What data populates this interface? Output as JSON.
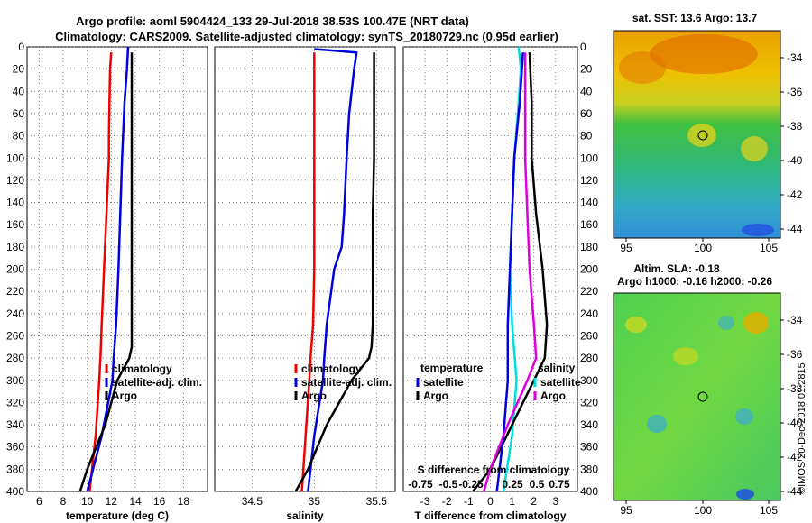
{
  "titles": {
    "line1": "Argo profile: aoml 5904424_133 29-Jul-2018 38.53S 100.47E (NRT data)",
    "line2": "Climatology: CARS2009. Satellite-adjusted climatology: synTS_20180729.nc (0.95d earlier)"
  },
  "colors": {
    "climatology": "#ee0000",
    "satellite": "#0000dd",
    "argo": "#000000",
    "sat_diff": "#00dddd",
    "sal_diff": "#dd00dd"
  },
  "chart_data": [
    {
      "type": "line",
      "panel": "temperature",
      "xlabel": "temperature (deg C)",
      "ylabel": "pressure",
      "xlim": [
        5,
        20
      ],
      "ylim": [
        400,
        0
      ],
      "xticks": [
        6,
        8,
        10,
        12,
        14,
        16,
        18
      ],
      "yticks": [
        0,
        20,
        40,
        60,
        80,
        100,
        120,
        140,
        160,
        180,
        200,
        220,
        240,
        260,
        280,
        300,
        320,
        340,
        360,
        380,
        400
      ],
      "legend": [
        "climatology",
        "satellite-adj. clim.",
        "Argo"
      ],
      "series": [
        {
          "name": "climatology",
          "color": "#ee0000",
          "depth": [
            5,
            20,
            50,
            80,
            100,
            150,
            200,
            250,
            280,
            300,
            350,
            400
          ],
          "values": [
            12.0,
            11.9,
            11.85,
            11.8,
            11.8,
            11.6,
            11.4,
            11.2,
            11.1,
            11.0,
            10.7,
            10.2
          ]
        },
        {
          "name": "satellite-adj. clim.",
          "color": "#0000dd",
          "depth": [
            0,
            20,
            50,
            100,
            150,
            200,
            250,
            280,
            300,
            350,
            400
          ],
          "values": [
            13.4,
            13.3,
            13.1,
            12.9,
            12.75,
            12.6,
            12.4,
            12.2,
            12.1,
            11.2,
            10.0
          ]
        },
        {
          "name": "Argo",
          "color": "#000000",
          "depth": [
            5,
            50,
            100,
            150,
            200,
            250,
            270,
            280,
            300,
            340,
            380,
            400
          ],
          "values": [
            13.7,
            13.7,
            13.7,
            13.7,
            13.7,
            13.7,
            13.7,
            13.5,
            12.5,
            11.5,
            10.0,
            9.4
          ]
        }
      ]
    },
    {
      "type": "line",
      "panel": "salinity",
      "xlabel": "salinity",
      "ylabel": "pressure",
      "xlim": [
        34.2,
        35.65
      ],
      "ylim": [
        400,
        0
      ],
      "xticks": [
        34.5,
        35,
        35.5
      ],
      "legend": [
        "climatology",
        "satellite-adj. clim.",
        "Argo"
      ],
      "series": [
        {
          "name": "climatology",
          "color": "#ee0000",
          "depth": [
            5,
            50,
            100,
            150,
            200,
            250,
            280,
            300,
            350,
            400
          ],
          "values": [
            35.0,
            35.0,
            35.0,
            35.0,
            35.0,
            34.99,
            34.97,
            34.96,
            34.93,
            34.9
          ],
          "dash": false
        },
        {
          "name": "satellite-adj. clim.",
          "color": "#0000dd",
          "depth": [
            2,
            5,
            20,
            60,
            100,
            150,
            180,
            200,
            250,
            280,
            300,
            350,
            400
          ],
          "values": [
            35.0,
            35.34,
            35.32,
            35.28,
            35.26,
            35.24,
            35.22,
            35.16,
            35.1,
            35.08,
            35.07,
            35.0,
            34.95
          ]
        },
        {
          "name": "Argo",
          "color": "#000000",
          "depth": [
            5,
            50,
            100,
            150,
            200,
            250,
            270,
            280,
            300,
            340,
            380,
            400
          ],
          "values": [
            35.48,
            35.48,
            35.48,
            35.47,
            35.47,
            35.47,
            35.46,
            35.44,
            35.3,
            35.1,
            34.95,
            34.85
          ]
        }
      ]
    },
    {
      "type": "line",
      "panel": "differences",
      "xlabel": "T difference from climatology",
      "xlabel_top": "S difference from climatology",
      "xlim": [
        -4,
        4
      ],
      "ylim": [
        400,
        0
      ],
      "xticks": [
        -3,
        -2,
        -1,
        0,
        1,
        2,
        3
      ],
      "sticks_labels": [
        "-0.75",
        "-0.5",
        "-0.25",
        "0.25",
        "0.5",
        "0.75"
      ],
      "legend_left_title": "temperature",
      "legend_left": [
        "satellite",
        "Argo"
      ],
      "legend_right_title": "salinity",
      "legend_right": [
        "satellite",
        "Argo"
      ],
      "series": [
        {
          "name": "T satellite",
          "color": "#00dddd",
          "depth": [
            0,
            20,
            50,
            100,
            200,
            250,
            300,
            350,
            400
          ],
          "values": [
            1.3,
            1.4,
            1.3,
            1.1,
            0.9,
            1.0,
            1.2,
            1.0,
            0.6
          ]
        },
        {
          "name": "T Argo",
          "color": "#000000",
          "depth": [
            5,
            50,
            100,
            150,
            200,
            250,
            280,
            300,
            340,
            380,
            400
          ],
          "values": [
            1.8,
            1.9,
            1.9,
            2.1,
            2.4,
            2.6,
            2.5,
            2.0,
            1.0,
            0.0,
            -0.8
          ]
        },
        {
          "name": "S satellite",
          "color": "#0000dd",
          "depth": [
            5,
            20,
            50,
            100,
            150,
            200,
            250,
            300,
            350,
            400
          ],
          "values": [
            1.5,
            1.45,
            1.35,
            1.1,
            1.0,
            0.9,
            0.8,
            0.8,
            0.6,
            0.3
          ]
        },
        {
          "name": "S Argo",
          "color": "#dd00dd",
          "depth": [
            5,
            50,
            100,
            150,
            200,
            250,
            280,
            300,
            340,
            380,
            400
          ],
          "values": [
            1.6,
            1.6,
            1.6,
            1.7,
            1.8,
            2.0,
            2.1,
            1.7,
            0.8,
            0.0,
            -0.3
          ]
        }
      ]
    }
  ],
  "maps": {
    "sst": {
      "title": "sat. SST: 13.6  Argo: 13.7",
      "yticks": [
        "-34",
        "-36",
        "-38",
        "-40",
        "-42",
        "-44"
      ],
      "xticks": [
        "95",
        "100",
        "105"
      ]
    },
    "sla": {
      "title_line1": "Altim. SLA: -0.18",
      "title_line2": "Argo h1000: -0.16 h2000: -0.26",
      "yticks": [
        "-34",
        "-36",
        "-38",
        "-40",
        "-42",
        "-44"
      ],
      "xticks": [
        "95",
        "100",
        "105"
      ]
    }
  },
  "watermark": "©IMOS 20-Dec-2018 01:2815"
}
